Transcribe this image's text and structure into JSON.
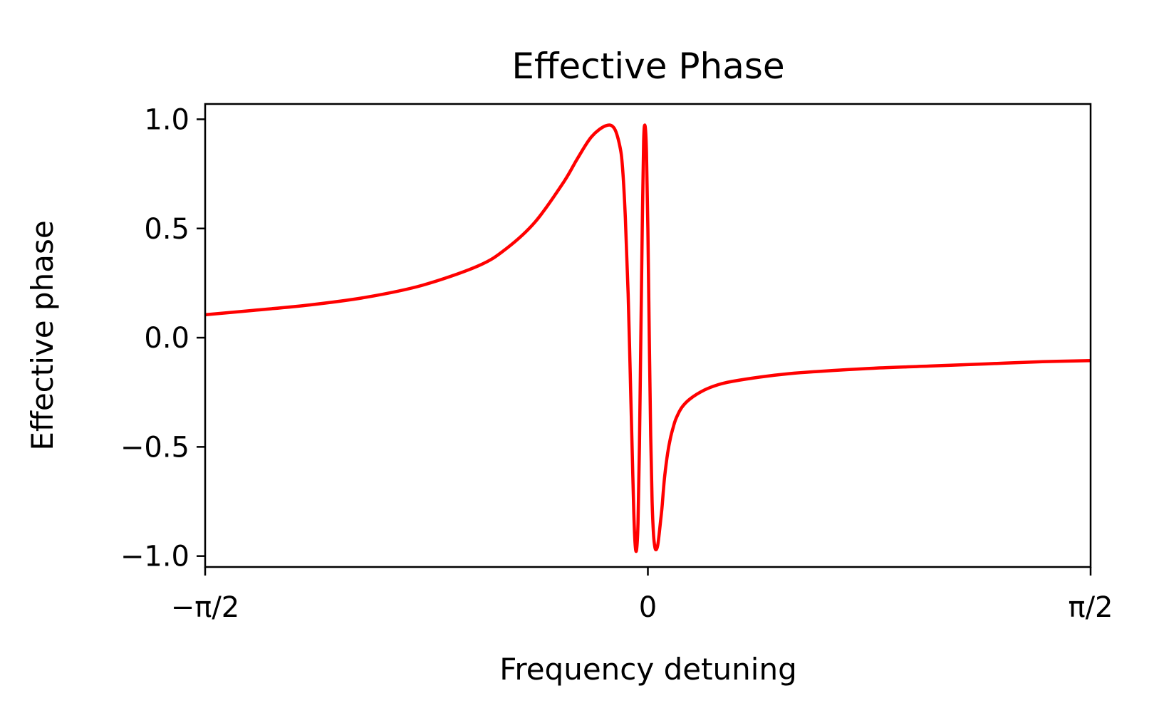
{
  "chart_data": {
    "type": "line",
    "title": "Effective Phase",
    "xlabel": "Frequency detuning",
    "ylabel": "Effective phase",
    "xlim": [
      -1.5708,
      1.5708
    ],
    "ylim": [
      -1.05,
      1.07
    ],
    "grid": false,
    "legend": "none",
    "x_ticks": [
      {
        "value": -1.5708,
        "label": "−π/2"
      },
      {
        "value": 0,
        "label": "0"
      },
      {
        "value": 1.5708,
        "label": "π/2"
      }
    ],
    "y_ticks": [
      {
        "value": 1.0,
        "label": "1.0"
      },
      {
        "value": 0.5,
        "label": "0.5"
      },
      {
        "value": 0.0,
        "label": "0.0"
      },
      {
        "value": -0.5,
        "label": "−0.5"
      },
      {
        "value": -1.0,
        "label": "−1.0"
      }
    ],
    "series": [
      {
        "color": "#ff0000",
        "x": [
          -1.5708,
          -1.4,
          -1.2,
          -1.0,
          -0.8,
          -0.6,
          -0.5,
          -0.4,
          -0.3,
          -0.25,
          -0.2,
          -0.15,
          -0.12,
          -0.1,
          -0.09,
          -0.08,
          -0.07,
          -0.06,
          -0.055,
          -0.05,
          -0.045,
          -0.04,
          -0.035,
          -0.03,
          -0.025,
          -0.02,
          -0.015,
          -0.01,
          -0.005,
          0.0,
          0.005,
          0.01,
          0.015,
          0.02,
          0.025,
          0.03,
          0.035,
          0.04,
          0.045,
          0.05,
          0.055,
          0.06,
          0.07,
          0.08,
          0.09,
          0.1,
          0.12,
          0.15,
          0.2,
          0.25,
          0.3,
          0.4,
          0.5,
          0.6,
          0.8,
          1.0,
          1.2,
          1.4,
          1.5708
        ],
        "y": [
          0.105,
          0.125,
          0.15,
          0.185,
          0.24,
          0.33,
          0.41,
          0.53,
          0.71,
          0.82,
          0.92,
          0.97,
          0.96,
          0.88,
          0.78,
          0.55,
          0.2,
          -0.3,
          -0.55,
          -0.8,
          -0.95,
          -0.97,
          -0.85,
          -0.5,
          0.0,
          0.5,
          0.9,
          0.97,
          0.85,
          0.5,
          0.0,
          -0.45,
          -0.75,
          -0.9,
          -0.96,
          -0.97,
          -0.95,
          -0.9,
          -0.84,
          -0.78,
          -0.7,
          -0.63,
          -0.53,
          -0.46,
          -0.41,
          -0.37,
          -0.32,
          -0.28,
          -0.24,
          -0.215,
          -0.2,
          -0.18,
          -0.165,
          -0.155,
          -0.14,
          -0.13,
          -0.12,
          -0.11,
          -0.105
        ]
      }
    ]
  }
}
